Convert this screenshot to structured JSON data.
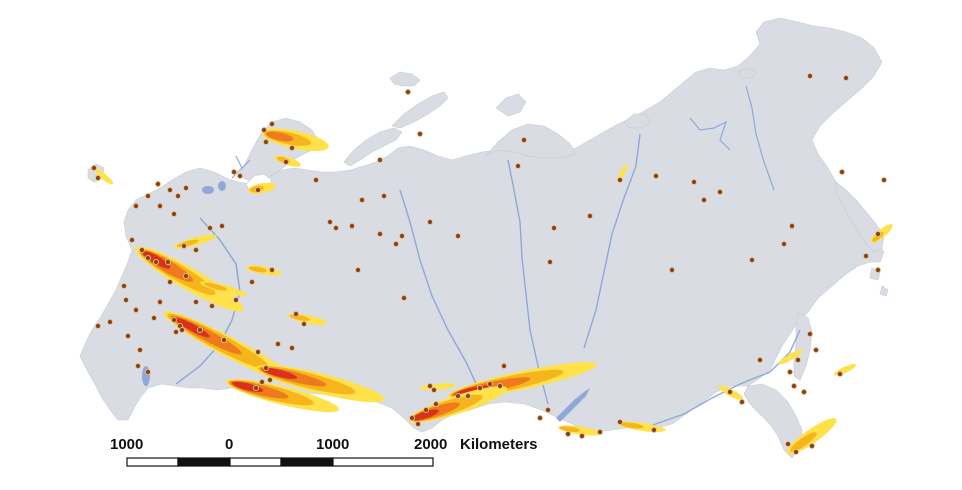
{
  "map": {
    "land_color": "#d9dde3",
    "water_color": "#8fa8d8",
    "plume_colors": [
      "#ffe14a",
      "#f5b51c",
      "#ee7a1e",
      "#d8321a"
    ],
    "site_color": "#8b4513",
    "site_edge_color": "#e8c9a0"
  },
  "scale_bar": {
    "labels": [
      "1000",
      "0",
      "1000",
      "2000"
    ],
    "unit": "Kilometers"
  }
}
